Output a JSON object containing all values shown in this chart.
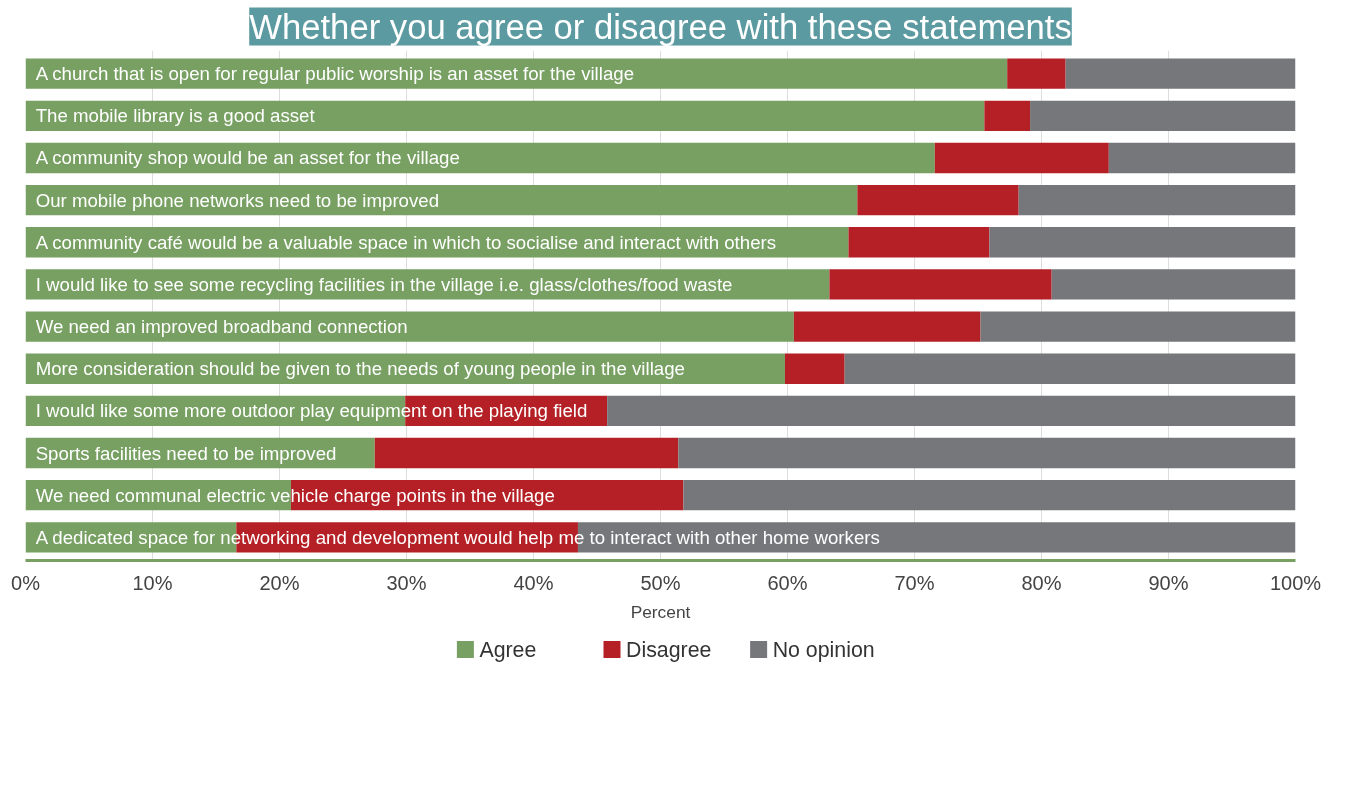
{
  "chart_data": {
    "type": "bar",
    "orientation": "horizontal",
    "stacked": true,
    "title": "Whether you agree or disagree with these statements",
    "xlabel": "Percent",
    "categories": [
      "A church that is open for regular public worship is an asset for the village",
      "The mobile library is a good asset",
      "A community shop would be an asset for the village",
      "Our mobile phone networks need to be improved",
      "A community café would be a valuable space in which to socialise and interact with others",
      "I would like to see some recycling facilities in the village i.e. glass/clothes/food waste",
      "We need an improved broadband connection",
      "More consideration should be given to the needs of young people in the village",
      "I would like some more outdoor play equipment on the playing field",
      "Sports facilities need to be improved",
      "We need communal electric vehicle charge points in the village",
      "A dedicated space for networking and development would help me to interact with other home workers"
    ],
    "series": [
      {
        "name": "Agree",
        "color": "#77a062",
        "values": [
          77.3,
          75.5,
          71.6,
          65.5,
          64.8,
          63.3,
          60.5,
          59.8,
          29.9,
          27.5,
          20.9,
          16.6
        ]
      },
      {
        "name": "Disagree",
        "color": "#b42025",
        "values": [
          4.6,
          3.6,
          13.7,
          12.7,
          11.1,
          17.5,
          14.7,
          4.7,
          15.9,
          23.9,
          30.9,
          26.9
        ]
      },
      {
        "name": "No opinion",
        "color": "#76777b",
        "values": [
          18.1,
          20.9,
          14.7,
          21.8,
          24.1,
          19.2,
          24.8,
          35.5,
          54.2,
          48.6,
          48.2,
          56.5
        ]
      }
    ],
    "xlim": [
      0,
      100
    ],
    "xticks": [
      {
        "value": 0,
        "label": "0%"
      },
      {
        "value": 10,
        "label": "10%"
      },
      {
        "value": 20,
        "label": "20%"
      },
      {
        "value": 30,
        "label": "30%"
      },
      {
        "value": 40,
        "label": "40%"
      },
      {
        "value": 50,
        "label": "50%"
      },
      {
        "value": 60,
        "label": "60%"
      },
      {
        "value": 70,
        "label": "70%"
      },
      {
        "value": 80,
        "label": "80%"
      },
      {
        "value": 90,
        "label": "90%"
      },
      {
        "value": 100,
        "label": "100%"
      }
    ],
    "grid": "x",
    "legend": "bottom"
  }
}
